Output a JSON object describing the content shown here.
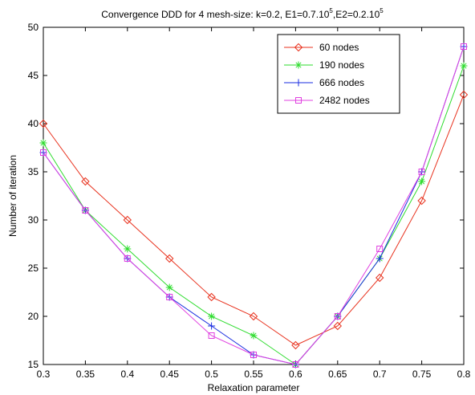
{
  "chart_data": {
    "type": "line",
    "title": "Convergence DDD for 4 mesh-size: k=0.2, E1=0.7.10",
    "title_sup1": "5",
    "title_mid": ",E2=0.2.10",
    "title_sup2": "5",
    "xlabel": "Relaxation parameter",
    "ylabel": "Number of iteration",
    "xlim": [
      0.3,
      0.8
    ],
    "ylim": [
      15,
      50
    ],
    "xticks": [
      "0.3",
      "0.35",
      "0.4",
      "0.45",
      "0.5",
      "0.55",
      "0.6",
      "0.65",
      "0.7",
      "0.75",
      "0.8"
    ],
    "yticks": [
      "15",
      "20",
      "25",
      "30",
      "35",
      "40",
      "45",
      "50"
    ],
    "grid": false,
    "legend_position": "top-right",
    "x": [
      0.3,
      0.35,
      0.4,
      0.45,
      0.5,
      0.55,
      0.6,
      0.65,
      0.7,
      0.75,
      0.8
    ],
    "series": [
      {
        "name": "60 nodes",
        "color": "#e8321e",
        "marker": "diamond",
        "values": [
          40,
          34,
          30,
          26,
          22,
          20,
          17,
          19,
          24,
          32,
          43
        ]
      },
      {
        "name": "190 nodes",
        "color": "#2edc2e",
        "marker": "asterisk",
        "values": [
          38,
          31,
          27,
          23,
          20,
          18,
          15,
          20,
          26,
          34,
          46
        ]
      },
      {
        "name": "666 nodes",
        "color": "#1a2ee0",
        "marker": "plus",
        "values": [
          37,
          31,
          26,
          22,
          19,
          16,
          15,
          20,
          26,
          35,
          48
        ]
      },
      {
        "name": "2482 nodes",
        "color": "#e040e0",
        "marker": "square",
        "values": [
          37,
          31,
          26,
          22,
          18,
          16,
          15,
          20,
          27,
          35,
          48
        ]
      }
    ]
  }
}
